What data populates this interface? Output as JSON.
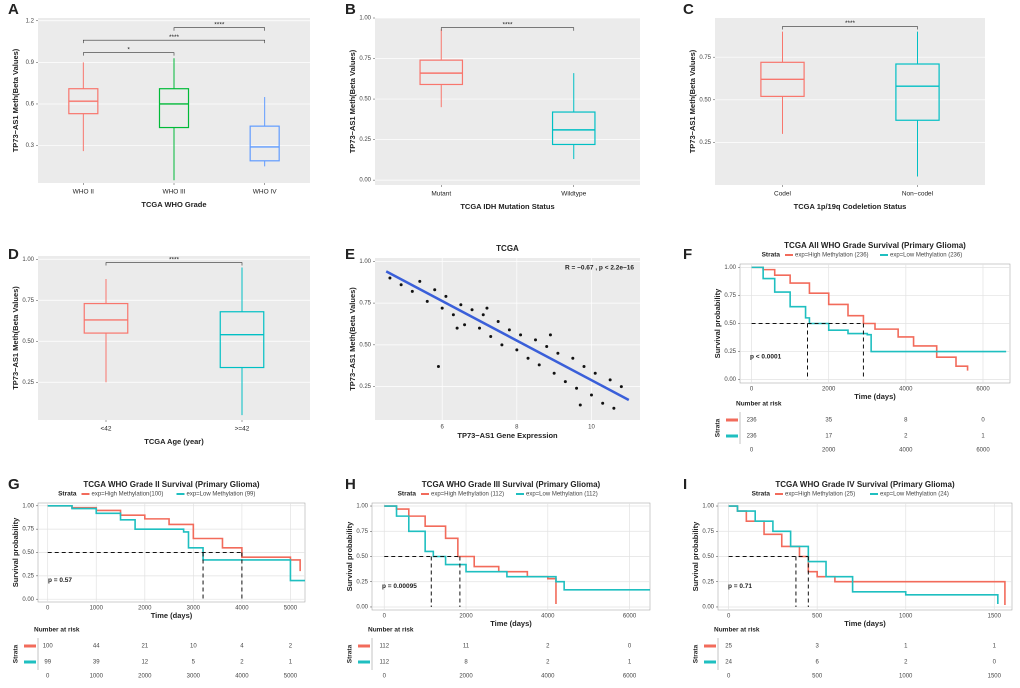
{
  "chart_data": [
    {
      "type": "box",
      "panel": "A",
      "ylabel": "TP73−AS1 Meth(Beta Values)",
      "xlabel": "TCGA WHO Grade",
      "categories": [
        "WHO II",
        "WHO III",
        "WHO IV"
      ],
      "colors": [
        "#f8766d",
        "#00ba38",
        "#619cff"
      ],
      "boxes": [
        {
          "min": 0.26,
          "q1": 0.53,
          "median": 0.62,
          "q3": 0.71,
          "max": 0.9
        },
        {
          "min": 0.05,
          "q1": 0.43,
          "median": 0.6,
          "q3": 0.71,
          "max": 0.93
        },
        {
          "min": 0.15,
          "q1": 0.19,
          "median": 0.29,
          "q3": 0.44,
          "max": 0.65
        }
      ],
      "comparisons": [
        {
          "groups": [
            "WHO II",
            "WHO III"
          ],
          "y": 0.97,
          "label": "*"
        },
        {
          "groups": [
            "WHO II",
            "WHO IV"
          ],
          "y": 1.06,
          "label": "****"
        },
        {
          "groups": [
            "WHO III",
            "WHO IV"
          ],
          "y": 1.15,
          "label": "****"
        }
      ],
      "ylim": [
        0.03,
        1.22
      ],
      "yticks": [
        0.3,
        0.6,
        0.9,
        1.2
      ],
      "grid": true
    },
    {
      "type": "box",
      "panel": "B",
      "ylabel": "TP73−AS1 Meth(Beta Values)",
      "xlabel": "TCGA IDH Mutation Status",
      "categories": [
        "Mutant",
        "Wildtype"
      ],
      "colors": [
        "#f8766d",
        "#00bfc4"
      ],
      "boxes": [
        {
          "min": 0.45,
          "q1": 0.59,
          "median": 0.66,
          "q3": 0.74,
          "max": 0.93
        },
        {
          "min": 0.13,
          "q1": 0.22,
          "median": 0.31,
          "q3": 0.42,
          "max": 0.66
        }
      ],
      "comparisons": [
        {
          "groups": [
            "Mutant",
            "Wildtype"
          ],
          "y": 0.94,
          "label": "****"
        }
      ],
      "ylim": [
        -0.03,
        1.0
      ],
      "yticks": [
        {
          "value": 0,
          "label": "0.00"
        },
        0.25,
        {
          "value": 0.5,
          "label": "0.50"
        },
        0.75,
        {
          "value": 1,
          "label": "1.00"
        }
      ],
      "grid": true
    },
    {
      "type": "box",
      "panel": "C",
      "ylabel": "TP73−AS1 Meth(Beta Values)",
      "xlabel": "TCGA 1p/19q Codeletion Status",
      "categories": [
        "Codel",
        "Non−codel"
      ],
      "colors": [
        "#f8766d",
        "#00bfc4"
      ],
      "boxes": [
        {
          "min": 0.3,
          "q1": 0.52,
          "median": 0.62,
          "q3": 0.72,
          "max": 0.9
        },
        {
          "min": 0.05,
          "q1": 0.38,
          "median": 0.58,
          "q3": 0.71,
          "max": 0.9
        }
      ],
      "comparisons": [
        {
          "groups": [
            "Codel",
            "Non−codel"
          ],
          "y": 0.93,
          "label": "****"
        }
      ],
      "ylim": [
        0.0,
        0.98
      ],
      "yticks": [
        0.25,
        {
          "value": 0.5,
          "label": "0.50"
        },
        0.75
      ],
      "grid": true
    },
    {
      "type": "box",
      "panel": "D",
      "ylabel": "TP73−AS1 Meth(Beta Values)",
      "xlabel": "TCGA Age (year)",
      "categories": [
        "<42",
        ">=42"
      ],
      "colors": [
        "#f8766d",
        "#00bfc4"
      ],
      "boxes": [
        {
          "min": 0.25,
          "q1": 0.55,
          "median": 0.63,
          "q3": 0.73,
          "max": 0.88
        },
        {
          "min": 0.05,
          "q1": 0.34,
          "median": 0.54,
          "q3": 0.68,
          "max": 0.95
        }
      ],
      "comparisons": [
        {
          "groups": [
            "<42",
            ">=42"
          ],
          "y": 0.98,
          "label": "****"
        }
      ],
      "ylim": [
        0.02,
        1.02
      ],
      "yticks": [
        0.25,
        {
          "value": 0.5,
          "label": "0.50"
        },
        0.75,
        {
          "value": 1,
          "label": "1.00"
        }
      ],
      "grid": true
    },
    {
      "type": "scatter",
      "panel": "E",
      "title": "TCGA",
      "ylabel": "TP73−AS1 Meth(Beta Values)",
      "xlabel": "TP73−AS1 Gene Expression",
      "annotation": "R = −0.67 , p < 2.2e−16",
      "color": "#111111",
      "fit_color": "#3a5fd9",
      "x": [
        4.6,
        4.9,
        5.2,
        5.4,
        5.6,
        5.8,
        6.0,
        6.1,
        6.3,
        6.5,
        6.6,
        6.8,
        7.0,
        7.1,
        7.3,
        7.5,
        7.6,
        7.8,
        8.0,
        8.1,
        8.3,
        8.5,
        8.6,
        8.8,
        9.0,
        9.1,
        9.3,
        9.5,
        9.6,
        9.8,
        10.0,
        10.1,
        10.3,
        10.5,
        10.6,
        10.8,
        7.2,
        6.4,
        8.9,
        9.7,
        5.9
      ],
      "y": [
        0.9,
        0.86,
        0.82,
        0.88,
        0.76,
        0.83,
        0.72,
        0.79,
        0.68,
        0.74,
        0.62,
        0.71,
        0.6,
        0.68,
        0.55,
        0.64,
        0.5,
        0.59,
        0.47,
        0.56,
        0.42,
        0.53,
        0.38,
        0.49,
        0.33,
        0.45,
        0.28,
        0.42,
        0.24,
        0.37,
        0.2,
        0.33,
        0.15,
        0.29,
        0.12,
        0.25,
        0.72,
        0.6,
        0.56,
        0.14,
        0.37
      ],
      "fit": {
        "x": [
          4.5,
          11.0
        ],
        "y": [
          0.94,
          0.17
        ]
      },
      "xlim": [
        4.2,
        11.3
      ],
      "xticks": [
        6,
        8,
        10
      ],
      "ylim": [
        0.05,
        1.02
      ],
      "yticks": [
        0.25,
        {
          "value": 0.5,
          "label": "0.50"
        },
        0.75,
        {
          "value": 1,
          "label": "1.00"
        }
      ],
      "grid": true
    },
    {
      "type": "km",
      "panel": "F",
      "title": "TCGA All WHO Grade Survival (Primary Glioma)",
      "legend_title": "Strata",
      "ylabel": "Survival probability",
      "xlabel": "Time (days)",
      "pvalue": "p < 0.0001",
      "risk_title": "Number at risk",
      "risk_label": "Strata",
      "series": [
        {
          "name": "exp=High Methylation (236)",
          "color": "#f26b5b",
          "x": [
            0,
            300,
            600,
            1000,
            1500,
            2000,
            2500,
            2900,
            3200,
            3800,
            4200,
            4800,
            5300,
            5600
          ],
          "y": [
            1,
            0.98,
            0.93,
            0.86,
            0.77,
            0.67,
            0.57,
            0.5,
            0.45,
            0.38,
            0.3,
            0.2,
            0.12,
            0.08
          ],
          "median": 2900,
          "risk": [
            236,
            35,
            8,
            0
          ]
        },
        {
          "name": "exp=Low Methylation (236)",
          "color": "#1fbfc0",
          "x": [
            0,
            300,
            600,
            1000,
            1400,
            1500,
            2000,
            2500,
            3000,
            3100,
            6600
          ],
          "y": [
            1,
            0.9,
            0.78,
            0.65,
            0.55,
            0.5,
            0.44,
            0.41,
            0.4,
            0.25,
            0.25
          ],
          "median": 1450,
          "risk": [
            236,
            17,
            2,
            1
          ]
        }
      ],
      "xlim": [
        -300,
        6700
      ],
      "xticks": [
        0,
        2000,
        4000,
        6000
      ],
      "ylim": [
        -0.03,
        1.03
      ],
      "yticks": [
        {
          "value": 0,
          "label": "0.00"
        },
        0.25,
        {
          "value": 0.5,
          "label": "0.50"
        },
        0.75,
        {
          "value": 1,
          "label": "1.00"
        }
      ],
      "grid": true
    },
    {
      "type": "km",
      "panel": "G",
      "title": "TCGA WHO Grade II Survival (Primary Glioma)",
      "legend_title": "Strata",
      "ylabel": "Survival probability",
      "xlabel": "Time (days)",
      "pvalue": "p = 0.57",
      "risk_title": "Number at risk",
      "risk_label": "Strata",
      "series": [
        {
          "name": "exp=High Methylation(100)",
          "color": "#f26b5b",
          "x": [
            0,
            500,
            1000,
            1500,
            2000,
            2500,
            3000,
            3600,
            4000,
            5000,
            5200
          ],
          "y": [
            1,
            0.98,
            0.95,
            0.9,
            0.86,
            0.8,
            0.65,
            0.55,
            0.45,
            0.42,
            0.3
          ],
          "median": 4000,
          "risk": [
            100,
            44,
            21,
            10,
            4,
            2
          ]
        },
        {
          "name": "exp=Low Methylation (99)",
          "color": "#1fbfc0",
          "x": [
            0,
            500,
            1000,
            1500,
            1800,
            2800,
            2900,
            3200,
            3900,
            5000,
            5300
          ],
          "y": [
            1,
            0.97,
            0.92,
            0.85,
            0.75,
            0.72,
            0.55,
            0.42,
            0.42,
            0.2,
            0.2
          ],
          "median": 3200,
          "risk": [
            99,
            39,
            12,
            5,
            2,
            1
          ]
        }
      ],
      "xlim": [
        -200,
        5300
      ],
      "xticks": [
        0,
        1000,
        2000,
        3000,
        4000,
        5000
      ],
      "ylim": [
        -0.03,
        1.03
      ],
      "yticks": [
        {
          "value": 0,
          "label": "0.00"
        },
        0.25,
        {
          "value": 0.5,
          "label": "0.50"
        },
        0.75,
        {
          "value": 1,
          "label": "1.00"
        }
      ],
      "grid": true
    },
    {
      "type": "km",
      "panel": "H",
      "title": "TCGA WHO Grade III Survival (Primary Glioma)",
      "legend_title": "Strata",
      "ylabel": "Survival probability",
      "xlabel": "Time (days)",
      "pvalue": "p = 0.00095",
      "risk_title": "Number at risk",
      "risk_label": "Strata",
      "series": [
        {
          "name": "exp=High Methylation (112)",
          "color": "#f26b5b",
          "x": [
            0,
            300,
            600,
            1000,
            1500,
            1800,
            2200,
            2800,
            3500,
            4000,
            4200
          ],
          "y": [
            1,
            0.97,
            0.9,
            0.8,
            0.68,
            0.5,
            0.4,
            0.35,
            0.3,
            0.28,
            0.03
          ],
          "median": 1850,
          "risk": [
            112,
            11,
            2,
            0
          ]
        },
        {
          "name": "exp=Low Methylation (112)",
          "color": "#1fbfc0",
          "x": [
            0,
            300,
            600,
            1000,
            1200,
            1500,
            2000,
            3000,
            4200,
            4400,
            6500
          ],
          "y": [
            1,
            0.9,
            0.75,
            0.55,
            0.5,
            0.42,
            0.35,
            0.3,
            0.25,
            0.17,
            0.17
          ],
          "median": 1150,
          "risk": [
            112,
            8,
            2,
            1
          ]
        }
      ],
      "xlim": [
        -300,
        6500
      ],
      "xticks": [
        0,
        2000,
        4000,
        6000
      ],
      "ylim": [
        -0.03,
        1.03
      ],
      "yticks": [
        {
          "value": 0,
          "label": "0.00"
        },
        0.25,
        {
          "value": 0.5,
          "label": "0.50"
        },
        0.75,
        {
          "value": 1,
          "label": "1.00"
        }
      ],
      "grid": true
    },
    {
      "type": "km",
      "panel": "I",
      "title": "TCGA WHO Grade IV Survival (Primary Glioma)",
      "legend_title": "Strata",
      "ylabel": "Survival probability",
      "xlabel": "Time (days)",
      "pvalue": "p = 0.71",
      "risk_title": "Number at risk",
      "risk_label": "Strata",
      "series": [
        {
          "name": "exp=High Methylation (25)",
          "color": "#f26b5b",
          "x": [
            0,
            50,
            100,
            200,
            300,
            400,
            450,
            500,
            600,
            1550,
            1560
          ],
          "y": [
            1,
            0.95,
            0.85,
            0.72,
            0.6,
            0.5,
            0.35,
            0.3,
            0.25,
            0.25,
            0.02
          ],
          "median": 450,
          "risk": [
            25,
            3,
            1,
            1
          ]
        },
        {
          "name": "exp=Low Methylation (24)",
          "color": "#1fbfc0",
          "x": [
            0,
            50,
            150,
            250,
            350,
            450,
            550,
            700,
            1000,
            1500,
            1520
          ],
          "y": [
            1,
            0.95,
            0.85,
            0.75,
            0.6,
            0.45,
            0.3,
            0.15,
            0.12,
            0.12,
            0.03
          ],
          "median": 380,
          "risk": [
            24,
            6,
            2,
            0
          ]
        }
      ],
      "xlim": [
        -60,
        1600
      ],
      "xticks": [
        0,
        500,
        1000,
        1500
      ],
      "ylim": [
        -0.03,
        1.03
      ],
      "yticks": [
        {
          "value": 0,
          "label": "0.00"
        },
        0.25,
        {
          "value": 0.5,
          "label": "0.50"
        },
        0.75,
        {
          "value": 1,
          "label": "1.00"
        }
      ],
      "grid": true
    }
  ]
}
